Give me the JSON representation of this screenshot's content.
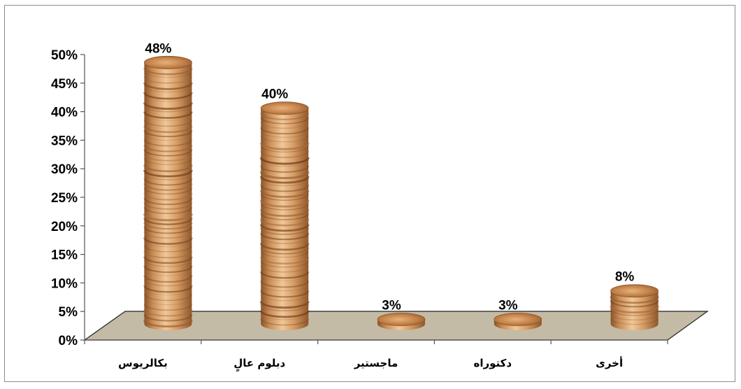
{
  "chart_data": {
    "type": "bar",
    "categories": [
      "بكالريوس",
      "دبلوم عالٍ",
      "ماجستير",
      "دكتوراه",
      "أخرى"
    ],
    "values": [
      48,
      40,
      3,
      3,
      8
    ],
    "data_labels": [
      "48%",
      "40%",
      "3%",
      "3%",
      "8%"
    ],
    "ylim": [
      0,
      50
    ],
    "y_ticks": [
      "0%",
      "5%",
      "10%",
      "15%",
      "20%",
      "25%",
      "30%",
      "35%",
      "40%",
      "45%",
      "50%"
    ],
    "title": "",
    "xlabel": "",
    "ylabel": "",
    "grid": false,
    "legend": "none",
    "style": "3d-cylinder",
    "colors": {
      "bar_light": "#e6b888",
      "bar_mid": "#c98d57",
      "bar_dark": "#8a5428",
      "floor": "#c4bba6",
      "floor_edge": "#222222",
      "axis": "#555555"
    }
  }
}
